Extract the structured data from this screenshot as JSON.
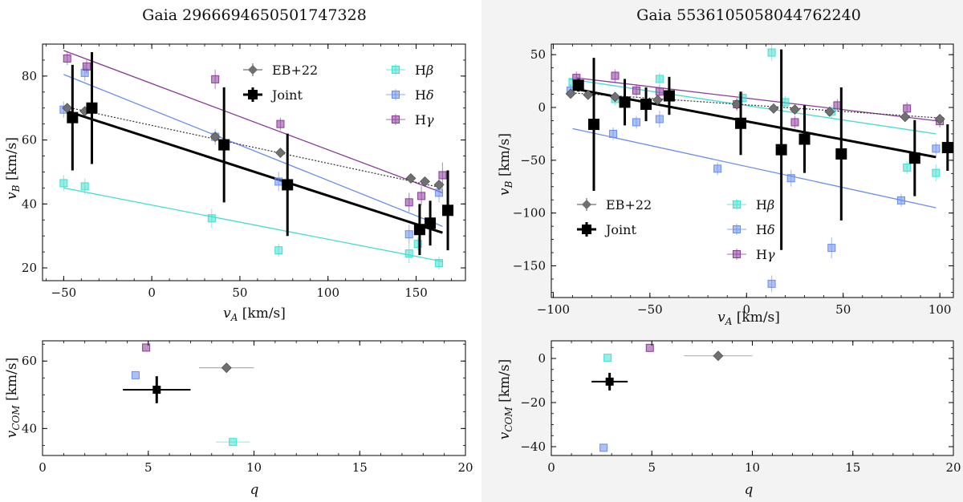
{
  "colors": {
    "eb22": "#707070",
    "joint": "#000000",
    "hbeta": "#40e0d0",
    "hdelta": "#6a8ef0",
    "hgamma": "#8b3a9a"
  },
  "legend": {
    "eb22": "EB+22",
    "joint": "Joint",
    "hbeta": "Hβ",
    "hdelta": "Hδ",
    "hgamma": "Hγ"
  },
  "chart_data": [
    {
      "type": "scatter",
      "title": "Gaia 2966694650501747328",
      "xlabel": "vA [km/s]",
      "ylabel": "vB [km/s]",
      "xlim": [
        -62,
        178
      ],
      "ylim": [
        16,
        90
      ],
      "xticks": [
        -50,
        0,
        50,
        100,
        150
      ],
      "yticks": [
        20,
        40,
        60,
        80
      ],
      "series": [
        {
          "key": "hbeta",
          "name": "Hβ",
          "points": [
            [
              -50,
              46.5,
              2.5
            ],
            [
              -38,
              45.5,
              2.5
            ],
            [
              34,
              35.5,
              3
            ],
            [
              72,
              25.5,
              2
            ],
            [
              146,
              24.5,
              3
            ],
            [
              151,
              27.5,
              2
            ],
            [
              163,
              21.5,
              2
            ]
          ],
          "fit": [
            [
              -50,
              45
            ],
            [
              165,
              22
            ]
          ]
        },
        {
          "key": "hdelta",
          "name": "Hδ",
          "points": [
            [
              -50,
              69.5,
              2.5
            ],
            [
              -38,
              81,
              2.5
            ],
            [
              36,
              61,
              2.5
            ],
            [
              72,
              47,
              3
            ],
            [
              146,
              30.5,
              3
            ],
            [
              163,
              43.5,
              3
            ]
          ],
          "fit": [
            [
              -50,
              80.5
            ],
            [
              165,
              33
            ]
          ]
        },
        {
          "key": "hgamma",
          "name": "Hγ",
          "points": [
            [
              -48,
              85.5,
              2
            ],
            [
              -37,
              83,
              2
            ],
            [
              36,
              79,
              3
            ],
            [
              73,
              65,
              2
            ],
            [
              146,
              40.5,
              3
            ],
            [
              153,
              42.5,
              3
            ],
            [
              165,
              49,
              4
            ]
          ],
          "fit": [
            [
              -50,
              88
            ],
            [
              165,
              43.5
            ]
          ]
        },
        {
          "key": "eb22",
          "name": "EB+22",
          "points": [
            [
              -48,
              70,
              0
            ],
            [
              -38,
              69,
              0
            ],
            [
              36,
              61,
              0
            ],
            [
              73,
              56,
              0
            ],
            [
              147,
              48,
              0
            ],
            [
              155,
              47,
              0
            ],
            [
              163,
              46,
              0
            ]
          ],
          "fit": [
            [
              -50,
              70.5
            ],
            [
              165,
              45
            ]
          ]
        },
        {
          "key": "joint",
          "name": "Joint",
          "points": [
            [
              -45,
              67,
              16.5
            ],
            [
              -34,
              70,
              17.5
            ],
            [
              41,
              58.5,
              18
            ],
            [
              77,
              46,
              16
            ],
            [
              152,
              32,
              8
            ],
            [
              158,
              34,
              7
            ],
            [
              168,
              38,
              12.5
            ]
          ],
          "fit": [
            [
              -48,
              69
            ],
            [
              165,
              31
            ]
          ]
        }
      ]
    },
    {
      "type": "scatter",
      "title": "",
      "xlabel": "q",
      "ylabel": "vCOM [km/s]",
      "xlim": [
        0,
        20
      ],
      "ylim": [
        32,
        66
      ],
      "xticks": [
        0,
        5,
        10,
        15,
        20
      ],
      "yticks": [
        40,
        60
      ],
      "series": [
        {
          "key": "hgamma",
          "name": "Hγ",
          "points": [
            [
              4.9,
              64,
              0,
              0
            ]
          ]
        },
        {
          "key": "hdelta",
          "name": "Hδ",
          "points": [
            [
              4.4,
              55.8,
              0,
              0
            ]
          ]
        },
        {
          "key": "eb22",
          "name": "EB+22",
          "points": [
            [
              8.7,
              58,
              1.3,
              0
            ]
          ]
        },
        {
          "key": "joint",
          "name": "Joint",
          "points": [
            [
              5.4,
              51.5,
              1.6,
              4
            ]
          ]
        },
        {
          "key": "hbeta",
          "name": "Hβ",
          "points": [
            [
              9,
              36,
              0.8,
              0
            ]
          ]
        }
      ]
    },
    {
      "type": "scatter",
      "title": "Gaia 5536105058044762240",
      "xlabel": "vA [km/s]",
      "ylabel": "vB [km/s]",
      "xlim": [
        -101,
        107
      ],
      "ylim": [
        -180,
        60
      ],
      "xticks": [
        -100,
        -50,
        0,
        50,
        100
      ],
      "yticks": [
        50,
        0,
        -50,
        -100,
        -150
      ],
      "series": [
        {
          "key": "hbeta",
          "name": "Hβ",
          "points": [
            [
              -90,
              24,
              6
            ],
            [
              -68,
              8,
              6
            ],
            [
              -45,
              27,
              6
            ],
            [
              -2,
              9,
              6
            ],
            [
              13,
              52,
              8
            ],
            [
              20,
              5,
              6
            ],
            [
              44,
              -4,
              6
            ],
            [
              83,
              -57,
              6
            ],
            [
              98,
              -62,
              8
            ]
          ],
          "fit": [
            [
              -92,
              27
            ],
            [
              98,
              -25
            ]
          ]
        },
        {
          "key": "hdelta",
          "name": "Hδ",
          "points": [
            [
              -91,
              16,
              6
            ],
            [
              -69,
              -25,
              6
            ],
            [
              -57,
              -14,
              6
            ],
            [
              -45,
              -11,
              8
            ],
            [
              -15,
              -58,
              6
            ],
            [
              13,
              -167,
              8
            ],
            [
              23,
              -67,
              8
            ],
            [
              44,
              -133,
              10
            ],
            [
              80,
              -88,
              6
            ],
            [
              98,
              -39,
              6
            ]
          ],
          "fit": [
            [
              -90,
              -20
            ],
            [
              98,
              -95
            ]
          ]
        },
        {
          "key": "hgamma",
          "name": "Hγ",
          "points": [
            [
              -88,
              28,
              6
            ],
            [
              -68,
              30,
              6
            ],
            [
              -57,
              16,
              6
            ],
            [
              -45,
              15,
              6
            ],
            [
              -5,
              3,
              6
            ],
            [
              25,
              -14,
              6
            ],
            [
              47,
              2,
              6
            ],
            [
              83,
              -1,
              6
            ],
            [
              100,
              -13,
              6
            ]
          ],
          "fit": [
            [
              -88,
              28
            ],
            [
              100,
              -13
            ]
          ]
        },
        {
          "key": "eb22",
          "name": "EB+22",
          "points": [
            [
              -91,
              13,
              0
            ],
            [
              -82,
              12,
              0
            ],
            [
              -68,
              10,
              0
            ],
            [
              -46,
              7,
              0
            ],
            [
              -5,
              3,
              0
            ],
            [
              14,
              -1,
              0
            ],
            [
              25,
              -2,
              0
            ],
            [
              43,
              -4,
              0
            ],
            [
              82,
              -9,
              0
            ],
            [
              100,
              -11,
              0
            ]
          ],
          "fit": [
            [
              -92,
              14
            ],
            [
              100,
              -10
            ]
          ]
        },
        {
          "key": "joint",
          "name": "Joint",
          "points": [
            [
              -87,
              21,
              6
            ],
            [
              -79,
              -16,
              63
            ],
            [
              -63,
              5,
              22
            ],
            [
              -52,
              3,
              16
            ],
            [
              -40,
              11,
              18
            ],
            [
              -3,
              -15,
              30
            ],
            [
              18,
              -40,
              95
            ],
            [
              30,
              -30,
              32
            ],
            [
              49,
              -44,
              63
            ],
            [
              87,
              -48,
              36
            ],
            [
              104,
              -38,
              22
            ]
          ],
          "fit": [
            [
              -90,
              18
            ],
            [
              98,
              -47
            ]
          ]
        }
      ]
    },
    {
      "type": "scatter",
      "title": "",
      "xlabel": "q",
      "ylabel": "vCOM [km/s]",
      "xlim": [
        0,
        20
      ],
      "ylim": [
        -44,
        8
      ],
      "xticks": [
        0,
        5,
        10,
        15,
        20
      ],
      "yticks": [
        0,
        -20,
        -40
      ],
      "series": [
        {
          "key": "hgamma",
          "name": "Hγ",
          "points": [
            [
              4.9,
              4.8,
              0,
              0
            ]
          ]
        },
        {
          "key": "hbeta",
          "name": "Hβ",
          "points": [
            [
              2.8,
              0.3,
              0,
              0
            ]
          ]
        },
        {
          "key": "eb22",
          "name": "EB+22",
          "points": [
            [
              8.3,
              1.2,
              1.7,
              0
            ]
          ]
        },
        {
          "key": "joint",
          "name": "Joint",
          "points": [
            [
              2.9,
              -10.5,
              0.9,
              4
            ]
          ]
        },
        {
          "key": "hdelta",
          "name": "Hδ",
          "points": [
            [
              2.6,
              -40.5,
              0,
              0
            ]
          ]
        }
      ]
    }
  ]
}
